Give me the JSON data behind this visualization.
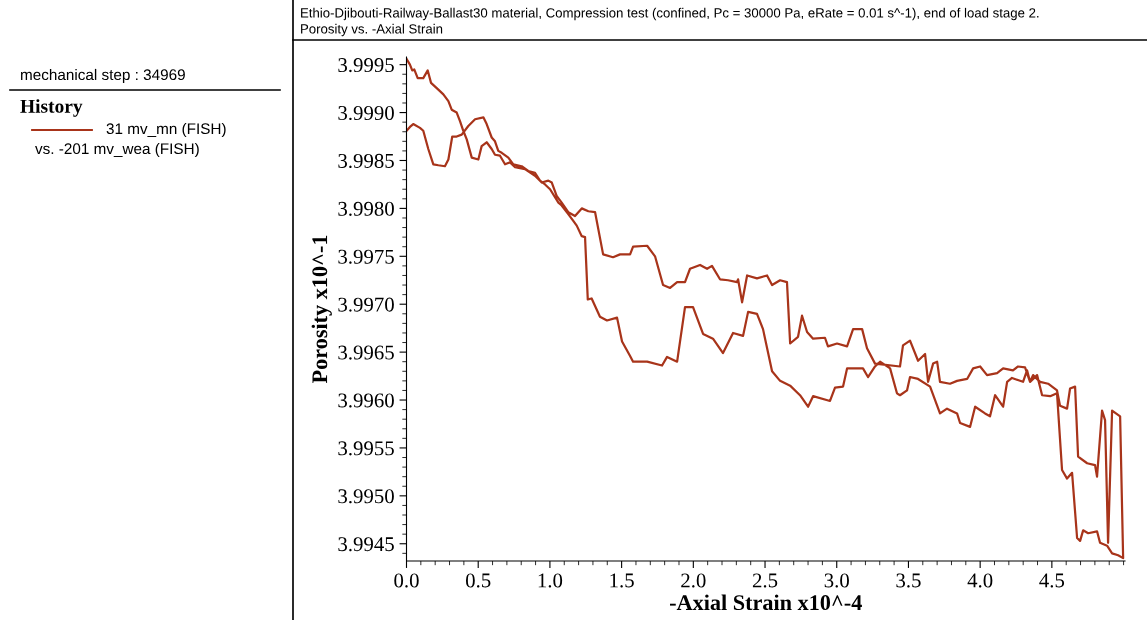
{
  "chart_data": {
    "type": "line",
    "title": "Ethio-Djibouti-Railway-Ballast30 material, Compression test (confined, Pc = 30000 Pa, eRate = 0.01 s^-1), end of load stage 2.",
    "subtitle": "Porosity vs. -Axial Strain",
    "xlabel": "-Axial Strain x10^-4",
    "ylabel": "Porosity x10^-1",
    "legend_title": "History",
    "annotations": [
      "mechanical step : 34969",
      "vs. -201 mv_wea (FISH)"
    ],
    "legend": "left",
    "series": [
      {
        "name": "31 mv_mn (FISH)",
        "color": "#a8341a",
        "x": [
          0.0,
          0.024,
          0.04,
          0.054,
          0.078,
          0.117,
          0.148,
          0.171,
          0.222,
          0.257,
          0.292,
          0.315,
          0.35,
          0.373,
          0.396,
          0.42,
          0.455,
          0.501,
          0.524,
          0.559,
          0.594,
          0.617,
          0.652,
          0.687,
          0.722,
          0.757,
          0.826,
          0.896,
          0.943,
          0.989,
          1.013,
          1.047,
          1.082,
          1.128,
          1.175,
          1.222,
          1.268,
          1.315,
          1.371,
          1.44,
          1.489,
          1.559,
          1.58,
          1.678,
          1.733,
          1.789,
          1.838,
          1.887,
          1.942,
          1.977,
          2.047,
          2.096,
          2.13,
          2.186,
          2.242,
          2.305,
          2.312,
          2.34,
          2.375,
          2.444,
          2.514,
          2.549,
          2.605,
          2.653,
          2.675,
          2.73,
          2.758,
          2.793,
          2.835,
          2.918,
          2.939,
          3.002,
          3.072,
          3.114,
          3.177,
          3.211,
          3.267,
          3.441,
          3.462,
          3.511,
          3.567,
          3.616,
          3.637,
          3.672,
          3.7,
          3.72,
          3.79,
          3.839,
          3.909,
          3.951,
          4.0,
          4.048,
          4.118,
          4.16,
          4.229,
          4.264,
          4.313,
          4.348,
          4.369,
          4.418,
          4.474,
          4.536,
          4.557,
          4.606,
          4.627,
          4.662,
          4.683,
          4.746,
          4.801,
          4.815,
          4.85,
          4.871,
          4.892,
          4.92,
          4.976,
          4.997,
          4.962,
          4.92,
          4.885,
          4.836,
          4.815,
          4.753,
          4.718,
          4.697,
          4.676,
          4.641,
          4.606,
          4.571,
          4.536,
          4.488,
          4.432,
          4.397,
          4.348,
          4.327,
          4.299,
          4.222,
          4.188,
          4.16,
          4.104,
          4.069,
          4.034,
          3.965,
          3.93,
          3.86,
          3.839,
          3.769,
          3.72,
          3.651,
          3.567,
          3.511,
          3.49,
          3.441,
          3.42,
          3.372,
          3.302,
          3.267,
          3.218,
          3.183,
          3.072,
          3.044,
          2.988,
          2.953,
          2.835,
          2.8,
          2.744,
          2.675,
          2.605,
          2.549,
          2.486,
          2.444,
          2.382,
          2.347,
          2.277,
          2.207,
          2.137,
          2.068,
          1.998,
          1.942,
          1.887,
          1.817,
          1.782,
          1.678,
          1.58,
          1.559,
          1.503,
          1.468,
          1.398,
          1.349,
          1.291,
          1.264,
          1.245,
          1.222,
          1.187,
          1.163,
          1.128,
          1.082,
          1.059,
          1.001,
          0.966,
          0.931,
          0.896,
          0.849,
          0.803,
          0.745,
          0.71,
          0.664,
          0.64,
          0.617,
          0.594,
          0.559,
          0.536,
          0.478,
          0.431,
          0.385,
          0.35,
          0.319,
          0.292,
          0.268,
          0.222,
          0.187,
          0.152,
          0.117,
          0.094,
          0.047,
          0.024,
          0.001
        ],
        "values": [
          3.99956,
          3.9995,
          3.99944,
          3.99945,
          3.99936,
          3.99936,
          3.99944,
          3.99931,
          3.99924,
          3.99919,
          3.99912,
          3.99903,
          3.999,
          3.99891,
          3.99881,
          3.99872,
          3.99853,
          3.99851,
          3.99865,
          3.99869,
          3.99862,
          3.99856,
          3.99855,
          3.99846,
          3.99848,
          3.99843,
          3.99841,
          3.99834,
          3.99827,
          3.99829,
          3.99827,
          3.99813,
          3.99806,
          3.99796,
          3.99792,
          3.998,
          3.99797,
          3.99796,
          3.99752,
          3.99749,
          3.99752,
          3.99752,
          3.9976,
          3.99761,
          3.9975,
          3.9972,
          3.99717,
          3.99723,
          3.99723,
          3.99737,
          3.99741,
          3.99737,
          3.9974,
          3.99726,
          3.99725,
          3.99723,
          3.99726,
          3.99702,
          3.9973,
          3.99727,
          3.9973,
          3.9972,
          3.99725,
          3.99723,
          3.99659,
          3.99666,
          3.99688,
          3.99671,
          3.99664,
          3.99665,
          3.99656,
          3.99659,
          3.99656,
          3.99674,
          3.99674,
          3.99654,
          3.99638,
          3.99635,
          3.99657,
          3.99662,
          3.99641,
          3.99648,
          3.99619,
          3.99638,
          3.9964,
          3.99619,
          3.99617,
          3.9962,
          3.99622,
          3.99633,
          3.99635,
          3.99626,
          3.99628,
          3.99633,
          3.99631,
          3.99635,
          3.99634,
          3.99619,
          3.99626,
          3.99619,
          3.99617,
          3.9961,
          3.99594,
          3.99591,
          3.99612,
          3.99614,
          3.99541,
          3.99534,
          3.99532,
          3.9952,
          3.99589,
          3.99579,
          3.99451,
          3.99589,
          3.99583,
          3.99435,
          3.99438,
          3.9944,
          3.99448,
          3.99451,
          3.99463,
          3.99461,
          3.99464,
          3.99453,
          3.99456,
          3.99524,
          3.99518,
          3.99527,
          3.99607,
          3.99604,
          3.99605,
          3.99626,
          3.99619,
          3.99631,
          3.99619,
          3.99623,
          3.99619,
          3.99593,
          3.99605,
          3.99583,
          3.99586,
          3.99593,
          3.99572,
          3.99576,
          3.99586,
          3.99591,
          3.99586,
          3.99614,
          3.99622,
          3.99624,
          3.9961,
          3.99605,
          3.99607,
          3.99633,
          3.9964,
          3.99635,
          3.99624,
          3.99633,
          3.99633,
          3.99614,
          3.99613,
          3.99599,
          3.99604,
          3.99593,
          3.99605,
          3.99615,
          3.9962,
          3.9963,
          3.99674,
          3.9969,
          3.99692,
          3.99667,
          3.9967,
          3.99649,
          3.99664,
          3.99669,
          3.99697,
          3.99697,
          3.9964,
          3.99645,
          3.99636,
          3.9964,
          3.9964,
          3.99646,
          3.99661,
          3.99686,
          3.99683,
          3.99687,
          3.99706,
          3.99705,
          3.9977,
          3.99771,
          3.99782,
          3.99787,
          3.99794,
          3.99803,
          3.99806,
          3.9982,
          3.99825,
          3.99829,
          3.99837,
          3.99839,
          3.99844,
          3.99846,
          3.99853,
          3.99858,
          3.9986,
          3.9987,
          3.99874,
          3.99888,
          3.99895,
          3.99893,
          3.99886,
          3.99877,
          3.99875,
          3.99875,
          3.99851,
          3.99844,
          3.99845,
          3.99846,
          3.99862,
          3.99881,
          3.99884,
          3.99888,
          3.99885,
          3.99881
        ]
      }
    ],
    "xlim": [
      0,
      5.01
    ],
    "ylim": [
      3.99432,
      3.99958
    ],
    "xticks": [
      {
        "value": 0,
        "label": "0.0"
      },
      0.5,
      {
        "value": 1,
        "label": "1.0"
      },
      1.5,
      {
        "value": 2,
        "label": "2.0"
      },
      2.5,
      {
        "value": 3,
        "label": "3.0"
      },
      3.5,
      {
        "value": 4,
        "label": "4.0"
      },
      4.5
    ],
    "yticks": [
      3.9945,
      {
        "value": 3.995,
        "label": "3.9950"
      },
      3.9955,
      {
        "value": 3.996,
        "label": "3.9960"
      },
      3.9965,
      {
        "value": 3.997,
        "label": "3.9970"
      },
      3.9975,
      {
        "value": 3.998,
        "label": "3.9980"
      },
      3.9985,
      {
        "value": 3.999,
        "label": "3.9990"
      },
      3.9995
    ],
    "grid": false,
    "marker": "none",
    "line_style": "solid"
  }
}
